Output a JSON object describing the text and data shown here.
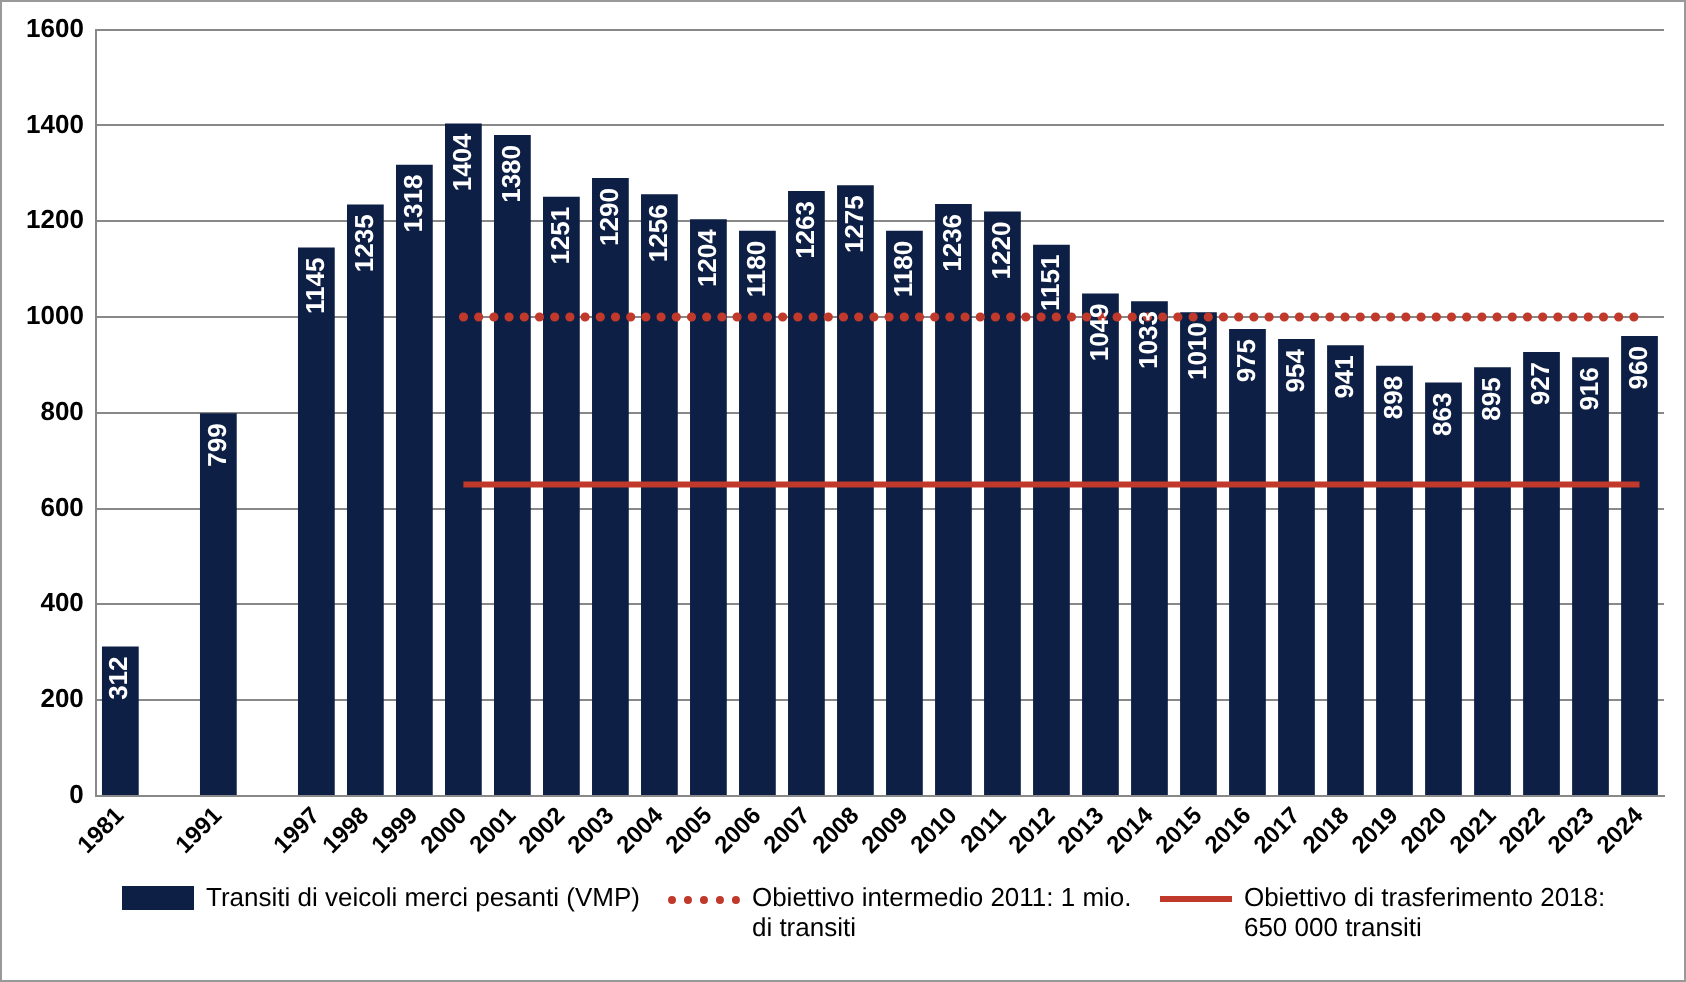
{
  "chart_data": {
    "type": "bar",
    "categories": [
      "1981",
      null,
      "1991",
      null,
      "1997",
      "1998",
      "1999",
      "2000",
      "2001",
      "2002",
      "2003",
      "2004",
      "2005",
      "2006",
      "2007",
      "2008",
      "2009",
      "2010",
      "2011",
      "2012",
      "2013",
      "2014",
      "2015",
      "2016",
      "2017",
      "2018",
      "2019",
      "2020",
      "2021",
      "2022",
      "2023",
      "2024"
    ],
    "series": [
      {
        "name": "Transiti di veicoli merci pesanti (VMP)",
        "color": "#0e1f45",
        "values": [
          312,
          null,
          799,
          null,
          1145,
          1235,
          1318,
          1404,
          1380,
          1251,
          1290,
          1256,
          1204,
          1180,
          1263,
          1275,
          1180,
          1236,
          1220,
          1151,
          1049,
          1033,
          1010,
          975,
          954,
          941,
          898,
          863,
          895,
          927,
          916,
          960
        ],
        "value_labels": [
          "312",
          null,
          "799",
          null,
          "1145",
          "1235",
          "1318",
          "1404",
          "1380",
          "1251",
          "1290",
          "1256",
          "1204",
          "1180",
          "1263",
          "1275",
          "1180",
          "1236",
          "1220",
          "1151",
          "1049",
          "1033",
          "1010",
          "975",
          "954",
          "941",
          "898",
          "863",
          "895",
          "927",
          "916",
          "960"
        ]
      },
      {
        "name": "Obiettivo intermedio 2011: 1 mio. di transiti",
        "type": "line",
        "color": "#c0392b",
        "line_style": "dotted",
        "marker": "none",
        "values": [
          null,
          null,
          null,
          null,
          null,
          null,
          null,
          1000,
          1000,
          1000,
          1000,
          1000,
          1000,
          1000,
          1000,
          1000,
          1000,
          1000,
          1000,
          1000,
          1000,
          1000,
          1000,
          1000,
          1000,
          1000,
          1000,
          1000,
          1000,
          1000,
          1000,
          1000
        ]
      },
      {
        "name": "Obiettivo di trasferimento 2018: 650 000 transiti",
        "type": "line",
        "color": "#c0392b",
        "line_style": "solid",
        "marker": "none",
        "values": [
          null,
          null,
          null,
          null,
          null,
          null,
          null,
          650,
          650,
          650,
          650,
          650,
          650,
          650,
          650,
          650,
          650,
          650,
          650,
          650,
          650,
          650,
          650,
          650,
          650,
          650,
          650,
          650,
          650,
          650,
          650,
          650
        ]
      }
    ],
    "ylim": [
      0,
      1600
    ],
    "yticks": [
      0,
      200,
      400,
      600,
      800,
      1000,
      1200,
      1400,
      1600
    ],
    "grid": "y",
    "legend": "bottom"
  }
}
